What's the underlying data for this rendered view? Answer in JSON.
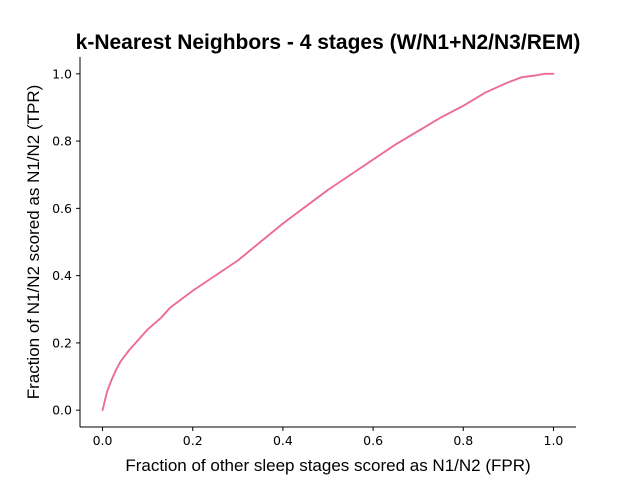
{
  "chart_data": {
    "type": "line",
    "title": "k-Nearest Neighbors - 4 stages (W/N1+N2/N3/REM)",
    "xlabel": "Fraction of other sleep stages scored as N1/N2 (FPR)",
    "ylabel": "Fraction of N1/N2 scored as N1/N2 (TPR)",
    "xlim": [
      -0.05,
      1.05
    ],
    "ylim": [
      -0.05,
      1.05
    ],
    "xticks": [
      0.0,
      0.2,
      0.4,
      0.6,
      0.8,
      1.0
    ],
    "yticks": [
      0.0,
      0.2,
      0.4,
      0.6,
      0.8,
      1.0
    ],
    "xtick_labels": [
      "0.0",
      "0.2",
      "0.4",
      "0.6",
      "0.8",
      "1.0"
    ],
    "ytick_labels": [
      "0.0",
      "0.2",
      "0.4",
      "0.6",
      "0.8",
      "1.0"
    ],
    "grid": false,
    "spines": "left-bottom",
    "series": [
      {
        "color": "#ec6b98",
        "x": [
          0.0,
          0.01,
          0.02,
          0.03,
          0.04,
          0.06,
          0.08,
          0.1,
          0.13,
          0.15,
          0.18,
          0.2,
          0.25,
          0.3,
          0.35,
          0.4,
          0.45,
          0.5,
          0.55,
          0.6,
          0.65,
          0.7,
          0.75,
          0.8,
          0.85,
          0.9,
          0.93,
          0.96,
          0.98,
          1.0
        ],
        "y": [
          0.0,
          0.055,
          0.09,
          0.12,
          0.145,
          0.18,
          0.21,
          0.24,
          0.275,
          0.305,
          0.335,
          0.355,
          0.4,
          0.445,
          0.5,
          0.555,
          0.605,
          0.655,
          0.7,
          0.745,
          0.79,
          0.83,
          0.87,
          0.905,
          0.945,
          0.975,
          0.99,
          0.995,
          1.0,
          1.0
        ]
      }
    ]
  }
}
